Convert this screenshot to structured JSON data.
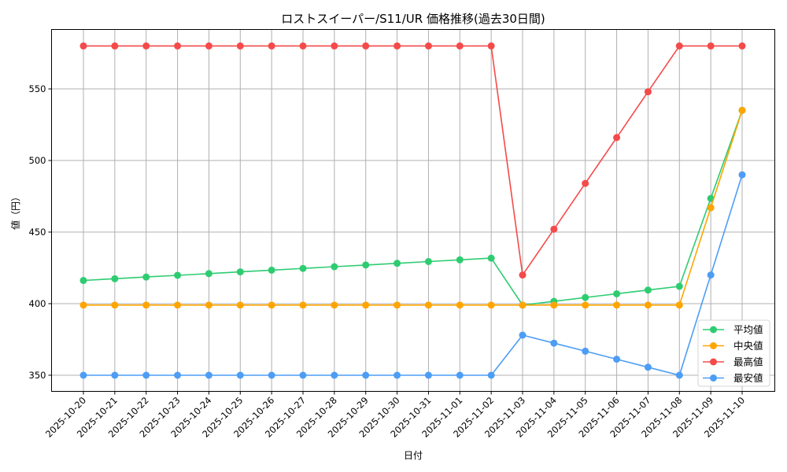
{
  "chart_data": {
    "type": "line",
    "title": "ロストスイーパー/S11/UR 価格推移(過去30日間)",
    "xlabel": "日付",
    "ylabel": "値（円）",
    "ylim": [
      339,
      592
    ],
    "yticks": [
      350,
      400,
      450,
      500,
      550
    ],
    "grid": true,
    "legend_position": "lower right",
    "categories": [
      "2025-10-20",
      "2025-10-21",
      "2025-10-22",
      "2025-10-23",
      "2025-10-24",
      "2025-10-25",
      "2025-10-26",
      "2025-10-27",
      "2025-10-28",
      "2025-10-29",
      "2025-10-30",
      "2025-10-31",
      "2025-11-01",
      "2025-11-02",
      "2025-11-03",
      "2025-11-04",
      "2025-11-05",
      "2025-11-06",
      "2025-11-07",
      "2025-11-08",
      "2025-11-09",
      "2025-11-10"
    ],
    "series": [
      {
        "name": "平均値",
        "color": "#2ecc71",
        "values": [
          416.2,
          417.4,
          418.6,
          419.8,
          421.0,
          422.2,
          423.4,
          424.6,
          425.8,
          427.0,
          428.2,
          429.4,
          430.6,
          431.8,
          399,
          401.6,
          404.3,
          406.9,
          409.5,
          412.1,
          473.5,
          535
        ]
      },
      {
        "name": "中央値",
        "color": "#ffa500",
        "values": [
          399,
          399,
          399,
          399,
          399,
          399,
          399,
          399,
          399,
          399,
          399,
          399,
          399,
          399,
          399,
          399,
          399,
          399,
          399,
          399,
          467,
          535
        ]
      },
      {
        "name": "最高値",
        "color": "#f54a4a",
        "values": [
          580,
          580,
          580,
          580,
          580,
          580,
          580,
          580,
          580,
          580,
          580,
          580,
          580,
          580,
          420,
          452,
          484,
          516,
          548,
          580,
          580,
          580
        ]
      },
      {
        "name": "最安値",
        "color": "#4d9df5",
        "values": [
          350,
          350,
          350,
          350,
          350,
          350,
          350,
          350,
          350,
          350,
          350,
          350,
          350,
          350,
          378,
          372.4,
          366.8,
          361.2,
          355.6,
          350,
          420,
          490
        ]
      }
    ]
  }
}
